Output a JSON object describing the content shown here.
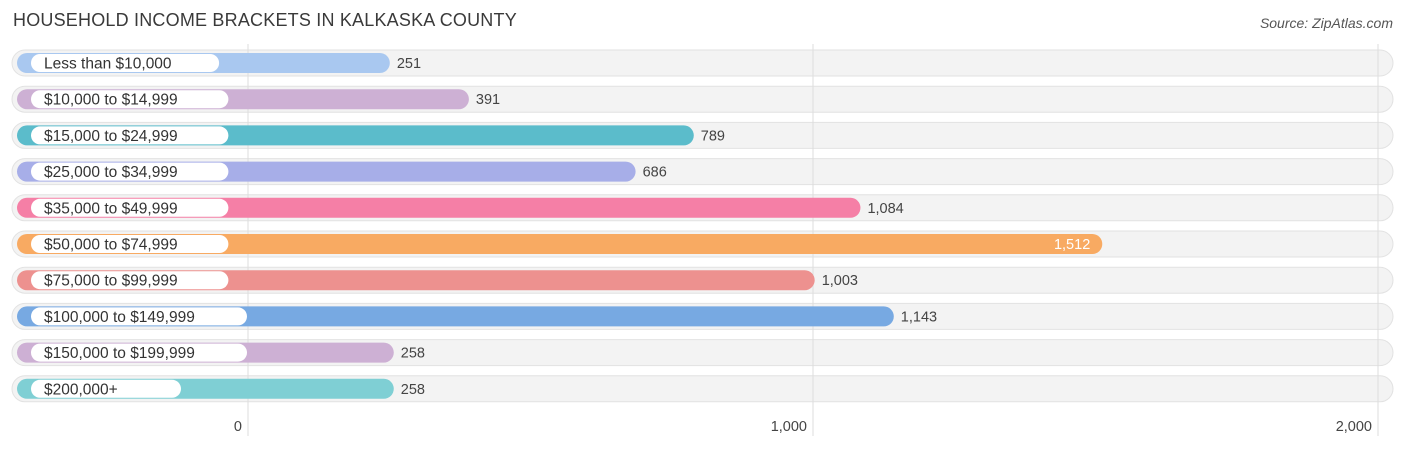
{
  "chart_data": {
    "type": "bar",
    "orientation": "horizontal",
    "title": "HOUSEHOLD INCOME BRACKETS IN KALKASKA COUNTY",
    "source": "Source: ZipAtlas.com",
    "categories": [
      "Less than $10,000",
      "$10,000 to $14,999",
      "$15,000 to $24,999",
      "$25,000 to $34,999",
      "$35,000 to $49,999",
      "$50,000 to $74,999",
      "$75,000 to $99,999",
      "$100,000 to $149,999",
      "$150,000 to $199,999",
      "$200,000+"
    ],
    "values": [
      251,
      391,
      789,
      686,
      1084,
      1512,
      1003,
      1143,
      258,
      258
    ],
    "value_labels": [
      "251",
      "391",
      "789",
      "686",
      "1,084",
      "1,512",
      "1,003",
      "1,143",
      "258",
      "258"
    ],
    "colors": [
      "#a9c8f0",
      "#cdb0d4",
      "#5bbccb",
      "#a7aee8",
      "#f57fa6",
      "#f8aa62",
      "#ed918f",
      "#77a9e2",
      "#cdb0d4",
      "#7fcfd4"
    ],
    "xlim": [
      0,
      2000
    ],
    "ticks": [
      0,
      1000,
      2000
    ],
    "tick_labels": [
      "0",
      "1,000",
      "2,000"
    ],
    "grid": true,
    "legend": "none"
  }
}
